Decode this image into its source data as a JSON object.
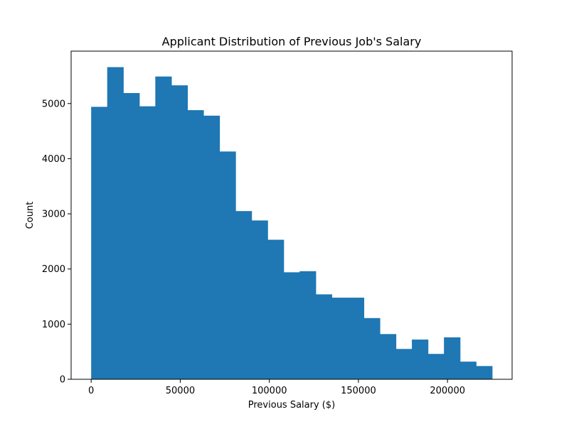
{
  "chart_data": {
    "type": "bar",
    "subtype": "histogram",
    "title": "Applicant Distribution of Previous Job's Salary",
    "xlabel": "Previous Salary ($)",
    "ylabel": "Count",
    "xlim": [
      -11250,
      236250
    ],
    "ylim": [
      0,
      5950
    ],
    "bin_width": 9000,
    "bin_start": 0,
    "counts": [
      4940,
      5660,
      5190,
      4950,
      5490,
      5330,
      4880,
      4780,
      4130,
      3050,
      2880,
      2530,
      1940,
      1960,
      1540,
      1480,
      1480,
      1110,
      820,
      550,
      720,
      460,
      760,
      320,
      240
    ],
    "color": "#1f77b4",
    "x_ticks": [
      {
        "value": 0,
        "label": "0"
      },
      {
        "value": 50000,
        "label": "50000"
      },
      {
        "value": 100000,
        "label": "100000"
      },
      {
        "value": 150000,
        "label": "150000"
      },
      {
        "value": 200000,
        "label": "200000"
      }
    ],
    "y_ticks": [
      {
        "value": 0,
        "label": "0"
      },
      {
        "value": 1000,
        "label": "1000"
      },
      {
        "value": 2000,
        "label": "2000"
      },
      {
        "value": 3000,
        "label": "3000"
      },
      {
        "value": 4000,
        "label": "4000"
      },
      {
        "value": 5000,
        "label": "5000"
      }
    ],
    "grid": false,
    "legend": "none"
  }
}
